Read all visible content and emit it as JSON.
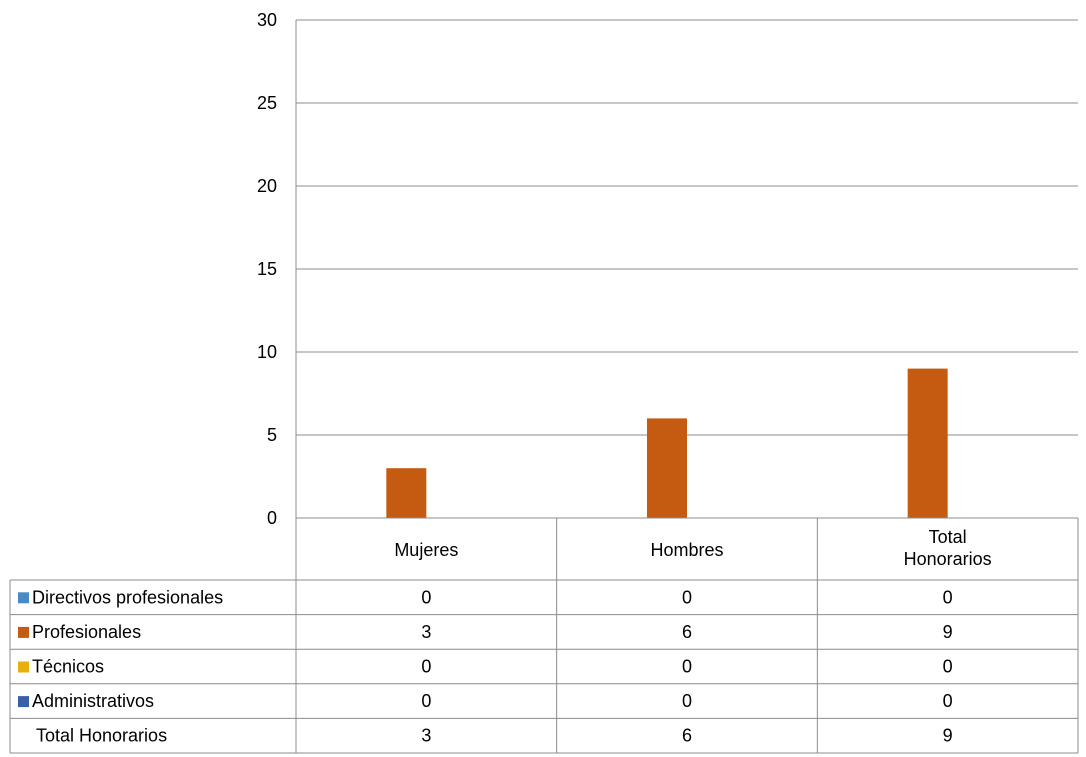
{
  "chart_data": {
    "type": "bar",
    "categories": [
      "Mujeres",
      "Hombres",
      "Total Honorarios"
    ],
    "category_label_lines": [
      [
        "Mujeres"
      ],
      [
        "Hombres"
      ],
      [
        "Total",
        "Honorarios"
      ]
    ],
    "series": [
      {
        "name": "Directivos profesionales",
        "values": [
          0,
          0,
          0
        ],
        "color": "#4a8ac4"
      },
      {
        "name": "Profesionales",
        "values": [
          3,
          6,
          9
        ],
        "color": "#c55a11"
      },
      {
        "name": "Técnicos",
        "values": [
          0,
          0,
          0
        ],
        "color": "#e8b00a"
      },
      {
        "name": "Administrativos",
        "values": [
          0,
          0,
          0
        ],
        "color": "#3a5faa"
      }
    ],
    "total_row": {
      "name": "Total Honorarios",
      "values": [
        3,
        6,
        9
      ]
    },
    "ylim": [
      0,
      30
    ],
    "yticks": [
      0,
      5,
      10,
      15,
      20,
      25,
      30
    ],
    "grid": true,
    "legend": "data-table",
    "title": "",
    "xlabel": "",
    "ylabel": ""
  }
}
